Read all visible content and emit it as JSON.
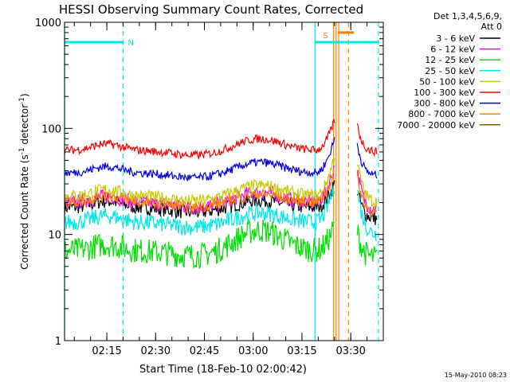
{
  "chart_data": {
    "type": "line",
    "title": "HESSI Observing Summary Count Rates, Corrected",
    "xlabel": "Start Time (18-Feb-10 02:00:42)",
    "ylabel_main": "Corrected Count Rate (s",
    "ylabel_sup1": "-1",
    "ylabel_mid": " detector",
    "ylabel_sup2": "-1",
    "ylabel_end": ")",
    "yscale": "log",
    "ylim": [
      1,
      1000
    ],
    "y_ticks": [
      {
        "value": 1,
        "label": "1"
      },
      {
        "value": 10,
        "label": "10"
      },
      {
        "value": 100,
        "label": "100"
      },
      {
        "value": 1000,
        "label": "1000"
      }
    ],
    "xlim_minutes": [
      2.0,
      100.0
    ],
    "x_ticks": [
      {
        "minute": 15,
        "label": "02:15"
      },
      {
        "minute": 30,
        "label": "02:30"
      },
      {
        "minute": 45,
        "label": "02:45"
      },
      {
        "minute": 60,
        "label": "03:00"
      },
      {
        "minute": 75,
        "label": "03:15"
      },
      {
        "minute": 90,
        "label": "03:30"
      }
    ],
    "legend_header": [
      "Det 1,3,4,5,6,9,",
      "Att 0"
    ],
    "legend_placement": "right",
    "series": [
      {
        "name": "3 - 6 keV",
        "color": "#000000",
        "base": 18,
        "peak": 21,
        "noise": 0.07,
        "flare": 30,
        "end": 14
      },
      {
        "name": "6 - 12 keV",
        "color": "#ff00ff",
        "base": 20,
        "peak": 25,
        "noise": 0.07,
        "flare": 45,
        "end": 17
      },
      {
        "name": "12 - 25 keV",
        "color": "#00e000",
        "base": 7,
        "peak": 11,
        "noise": 0.12,
        "flare": 12,
        "end": 6
      },
      {
        "name": "25 - 50 keV",
        "color": "#00e8e8",
        "base": 13,
        "peak": 16,
        "noise": 0.08,
        "flare": 30,
        "end": 10
      },
      {
        "name": "50 - 100 keV",
        "color": "#c8c800",
        "base": 23,
        "peak": 29,
        "noise": 0.06,
        "flare": 55,
        "end": 20
      },
      {
        "name": "100 - 300 keV",
        "color": "#ff0000",
        "base": 62,
        "peak": 80,
        "noise": 0.04,
        "flare": 120,
        "end": 60
      },
      {
        "name": "300 - 800 keV",
        "color": "#0000dd",
        "base": 38,
        "peak": 48,
        "noise": 0.04,
        "flare": 80,
        "end": 36
      },
      {
        "name": "800 - 7000 keV",
        "color": "#ff8000",
        "base": 20,
        "peak": 24,
        "noise": 0.05,
        "flare": 40,
        "end": 16
      },
      {
        "name": "7000 - 20000 keV",
        "color": "#806000",
        "base": null,
        "peak": null,
        "noise": 0,
        "flare": null,
        "end": null
      }
    ],
    "shaded_bars": [
      {
        "label": "N",
        "start_min": 2.0,
        "end_min": 20.0,
        "value": 650,
        "color": "#00e8e8"
      },
      {
        "label": "S",
        "start_min": 79.0,
        "end_min": 98.5,
        "value": 650,
        "color": "#00e8e8"
      }
    ],
    "flare_marker": {
      "start_min": 86.0,
      "end_min": 91.0,
      "value": 800,
      "color": "#ff8000"
    },
    "vertical_lines": [
      {
        "minute": 2.0,
        "style": "solid",
        "color": "#00e8e8"
      },
      {
        "minute": 20.0,
        "style": "dashed",
        "color": "#00e8e8"
      },
      {
        "minute": 79.0,
        "style": "solid",
        "color": "#00e8e8"
      },
      {
        "minute": 98.5,
        "style": "dashed",
        "color": "#00e8e8"
      },
      {
        "minute": 84.7,
        "style": "solid",
        "color": "#ff8000"
      },
      {
        "minute": 85.5,
        "style": "solid",
        "color": "#ff8000"
      },
      {
        "minute": 86.3,
        "style": "solid",
        "color": "#ff8000"
      },
      {
        "minute": 89.3,
        "style": "dashed",
        "color": "#ff8000"
      }
    ],
    "gap_start_min": 85.0,
    "gap_end_min": 92.0,
    "footer_date": "15-May-2010 08:23"
  }
}
